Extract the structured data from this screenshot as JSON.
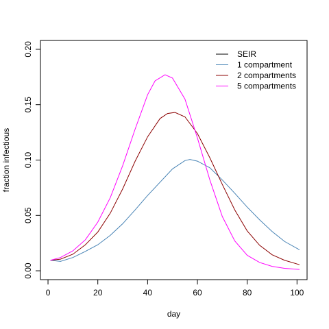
{
  "chart_data": {
    "type": "line",
    "title": "",
    "xlabel": "day",
    "ylabel": "fraction infectious",
    "xlim": [
      -3.04,
      104.04
    ],
    "ylim": [
      -0.008,
      0.208
    ],
    "x_ticks": [
      0,
      20,
      40,
      60,
      80,
      100
    ],
    "x_tick_labels": [
      "0",
      "20",
      "40",
      "60",
      "80",
      "100"
    ],
    "y_ticks": [
      0.0,
      0.05,
      0.1,
      0.15,
      0.2
    ],
    "y_tick_labels": [
      "0.00",
      "0.05",
      "0.10",
      "0.15",
      "0.20"
    ],
    "grid": false,
    "legend_position": "top-right",
    "series": [
      {
        "name": "SEIR",
        "color": "#000000",
        "x": [],
        "y": []
      },
      {
        "name": "1 compartment",
        "color": "#4682B4",
        "x": [
          1,
          5,
          10,
          15,
          20,
          25,
          30,
          35,
          40,
          45,
          50,
          55,
          57,
          60,
          65,
          70,
          75,
          80,
          85,
          90,
          95,
          101
        ],
        "y": [
          0.0095,
          0.0085,
          0.012,
          0.0175,
          0.0235,
          0.032,
          0.0425,
          0.055,
          0.068,
          0.08,
          0.092,
          0.0995,
          0.1005,
          0.099,
          0.093,
          0.082,
          0.07,
          0.0575,
          0.046,
          0.0355,
          0.0265,
          0.019
        ]
      },
      {
        "name": "2 compartments",
        "color": "#8B0000",
        "x": [
          1,
          5,
          10,
          15,
          20,
          25,
          30,
          35,
          40,
          45,
          48,
          51,
          55,
          60,
          65,
          70,
          75,
          80,
          85,
          90,
          95,
          101
        ],
        "y": [
          0.0095,
          0.0105,
          0.015,
          0.0235,
          0.035,
          0.052,
          0.074,
          0.099,
          0.121,
          0.1375,
          0.142,
          0.143,
          0.139,
          0.124,
          0.102,
          0.078,
          0.055,
          0.036,
          0.023,
          0.0145,
          0.0095,
          0.0055
        ]
      },
      {
        "name": "5 compartments",
        "color": "#FF00FF",
        "x": [
          1,
          5,
          10,
          15,
          20,
          25,
          30,
          35,
          40,
          43,
          47,
          50,
          55,
          60,
          65,
          70,
          75,
          80,
          85,
          90,
          95,
          101
        ],
        "y": [
          0.0095,
          0.012,
          0.018,
          0.028,
          0.044,
          0.066,
          0.095,
          0.128,
          0.159,
          0.1715,
          0.177,
          0.174,
          0.155,
          0.12,
          0.082,
          0.049,
          0.027,
          0.014,
          0.0075,
          0.004,
          0.0022,
          0.0012
        ]
      }
    ]
  }
}
